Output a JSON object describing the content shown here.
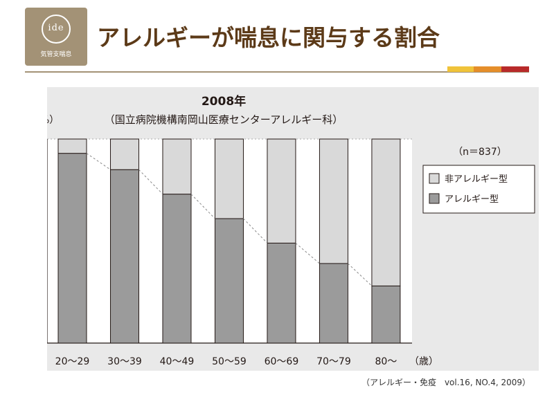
{
  "logo": {
    "word": "ide",
    "subtitle": "気管支喘息",
    "bg": "#a39276"
  },
  "header": {
    "title": "アレルギーが喘息に関与する割合",
    "title_color": "#5c3a18",
    "accents": [
      "#f0c33a",
      "#e58e2a",
      "#b82a2a"
    ]
  },
  "chart_data": {
    "type": "bar",
    "stacked": true,
    "title": "2008年",
    "subtitle": "（国立病院機構南岡山医療センターアレルギー科）",
    "ylabel": "（%）",
    "xlabel_unit": "（歳）",
    "categories": [
      "20〜29",
      "30〜39",
      "40〜49",
      "50〜59",
      "60〜69",
      "70〜79",
      "80〜"
    ],
    "ylim": [
      0,
      100
    ],
    "yticks": [
      0,
      20,
      40,
      60,
      80,
      100
    ],
    "n_label": "（n＝837）",
    "legend_position": "right",
    "series": [
      {
        "name": "アレルギー型",
        "values": [
          93,
          85,
          73,
          61,
          49,
          39,
          28
        ],
        "color": "#9b9b9b"
      },
      {
        "name": "非アレルギー型",
        "values": [
          7,
          15,
          27,
          39,
          51,
          61,
          72
        ],
        "color": "#d9d9d9"
      }
    ],
    "legend": [
      "非アレルギー型",
      "アレルギー型"
    ],
    "trend_line": "dashed line joining tops of アレルギー型 bars"
  },
  "source": "（アレルギー・免疫　vol.16, NO.4, 2009）"
}
